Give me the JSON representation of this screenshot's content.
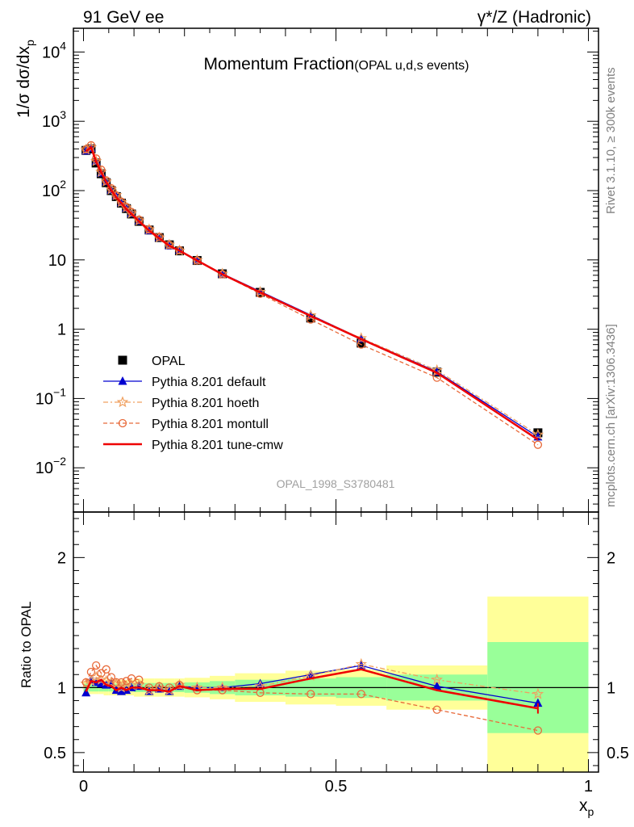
{
  "header": {
    "left": "91 GeV ee",
    "right": "γ*/Z (Hadronic)",
    "side_top": "Rivet 3.1.10, ≥ 300k events",
    "side_bottom": "mcplots.cern.ch [arXiv:1306.3436]"
  },
  "chart_data": [
    {
      "type": "line",
      "title": "Momentum Fraction",
      "subtitle": "(OPAL u,d,s events)",
      "watermark": "OPAL_1998_S3780481",
      "ylabel": "1/σ dσ/dx_p",
      "xlabel": "x_p",
      "xlim": [
        -0.02,
        1.02
      ],
      "ylim": [
        0.0023,
        22000
      ],
      "yscale": "log",
      "y_tick_labels": [
        "10^-2",
        "10^-1",
        "1",
        "10",
        "10^2",
        "10^3",
        "10^4"
      ],
      "legend_position": "bottom-left",
      "x": [
        0.005,
        0.015,
        0.025,
        0.035,
        0.045,
        0.055,
        0.065,
        0.075,
        0.085,
        0.095,
        0.11,
        0.13,
        0.15,
        0.17,
        0.19,
        0.225,
        0.275,
        0.35,
        0.45,
        0.55,
        0.7,
        0.9
      ],
      "series": [
        {
          "name": "OPAL",
          "color": "#000000",
          "marker": "square",
          "values": [
            380,
            400,
            250,
            175,
            130,
            100,
            82,
            66,
            55,
            46,
            36,
            27,
            21,
            16.5,
            13.5,
            9.8,
            6.3,
            3.4,
            1.45,
            0.63,
            0.24,
            0.032
          ]
        },
        {
          "name": "Pythia 8.201 default",
          "color": "#0000d0",
          "marker": "triangle",
          "values": [
            375,
            410,
            265,
            180,
            135,
            102,
            84,
            67,
            56,
            47,
            36.5,
            26.5,
            21,
            16,
            13.8,
            9.9,
            6.3,
            3.5,
            1.6,
            0.73,
            0.243,
            0.028
          ]
        },
        {
          "name": "Pythia 8.201 hoeth",
          "color": "#f0a060",
          "marker": "star",
          "values": [
            390,
            420,
            265,
            185,
            135,
            104,
            86,
            68,
            57,
            47,
            37,
            27.5,
            21,
            16.5,
            13.6,
            9.9,
            6.3,
            3.45,
            1.58,
            0.74,
            0.255,
            0.03
          ]
        },
        {
          "name": "Pythia 8.201 montull",
          "color": "#e86a3a",
          "marker": "circle",
          "values": [
            395,
            450,
            290,
            200,
            140,
            108,
            85,
            69,
            58,
            49,
            38,
            27.5,
            21.5,
            16.5,
            13.8,
            9.8,
            6.2,
            3.25,
            1.38,
            0.6,
            0.2,
            0.0215
          ]
        },
        {
          "name": "Pythia 8.201 tune-cmw",
          "color": "#ee0000",
          "marker": "none",
          "values": [
            370,
            420,
            260,
            185,
            133,
            101,
            80,
            66,
            54,
            46,
            36,
            26.5,
            20.5,
            16,
            13.6,
            9.8,
            6.2,
            3.4,
            1.55,
            0.72,
            0.235,
            0.0255
          ]
        }
      ]
    },
    {
      "type": "line",
      "ylabel": "Ratio to OPAL",
      "xlabel": "x_p",
      "xlim": [
        -0.02,
        1.02
      ],
      "ylim": [
        0.35,
        2.35
      ],
      "x_tick_labels": [
        "0",
        "0.5",
        "1"
      ],
      "y_tick_labels": [
        "0.5",
        "1",
        "2"
      ],
      "x": [
        0.005,
        0.015,
        0.025,
        0.035,
        0.045,
        0.055,
        0.065,
        0.075,
        0.085,
        0.095,
        0.11,
        0.13,
        0.15,
        0.17,
        0.19,
        0.225,
        0.275,
        0.35,
        0.45,
        0.55,
        0.7,
        0.9
      ],
      "bin_edges": [
        0,
        0.01,
        0.02,
        0.03,
        0.04,
        0.05,
        0.06,
        0.07,
        0.08,
        0.09,
        0.1,
        0.12,
        0.14,
        0.16,
        0.18,
        0.2,
        0.25,
        0.3,
        0.4,
        0.5,
        0.6,
        0.8,
        1.0
      ],
      "band_green": [
        0.03,
        0.03,
        0.03,
        0.03,
        0.03,
        0.03,
        0.03,
        0.03,
        0.03,
        0.03,
        0.035,
        0.035,
        0.035,
        0.035,
        0.035,
        0.04,
        0.05,
        0.06,
        0.07,
        0.08,
        0.1,
        0.35
      ],
      "band_yellow": [
        0.05,
        0.05,
        0.05,
        0.05,
        0.06,
        0.06,
        0.06,
        0.06,
        0.06,
        0.06,
        0.07,
        0.07,
        0.07,
        0.07,
        0.07,
        0.075,
        0.09,
        0.11,
        0.13,
        0.14,
        0.17,
        0.7
      ],
      "series": [
        {
          "name": "Pythia 8.201 default",
          "color": "#0000d0",
          "marker": "triangle",
          "values": [
            0.96,
            1.06,
            1.04,
            1.03,
            1.02,
            1.03,
            0.98,
            0.97,
            0.98,
            1.0,
            1.01,
            0.97,
            0.99,
            0.97,
            1.01,
            1.0,
            1.0,
            1.03,
            1.1,
            1.17,
            1.01,
            0.88
          ]
        },
        {
          "name": "Pythia 8.201 hoeth",
          "color": "#f0a060",
          "marker": "star",
          "values": [
            1.03,
            1.05,
            1.08,
            1.06,
            1.05,
            1.04,
            1.03,
            1.0,
            1.01,
            1.02,
            1.02,
            0.98,
            1.0,
            0.98,
            1.02,
            1.0,
            1.0,
            1.01,
            1.09,
            1.18,
            1.06,
            0.95
          ]
        },
        {
          "name": "Pythia 8.201 montull",
          "color": "#e86a3a",
          "marker": "circle",
          "values": [
            1.04,
            1.12,
            1.17,
            1.11,
            1.14,
            1.08,
            1.04,
            1.04,
            1.05,
            1.07,
            1.06,
            1.0,
            1.01,
            1.0,
            1.02,
            0.98,
            0.98,
            0.96,
            0.95,
            0.95,
            0.83,
            0.67
          ]
        },
        {
          "name": "Pythia 8.201 tune-cmw",
          "color": "#ee0000",
          "marker": "none",
          "values": [
            0.97,
            1.05,
            1.04,
            1.06,
            1.02,
            1.01,
            0.98,
            1.0,
            0.98,
            1.0,
            1.0,
            0.98,
            0.98,
            0.97,
            1.01,
            0.98,
            0.99,
            0.99,
            1.07,
            1.14,
            0.98,
            0.84
          ]
        }
      ]
    }
  ]
}
